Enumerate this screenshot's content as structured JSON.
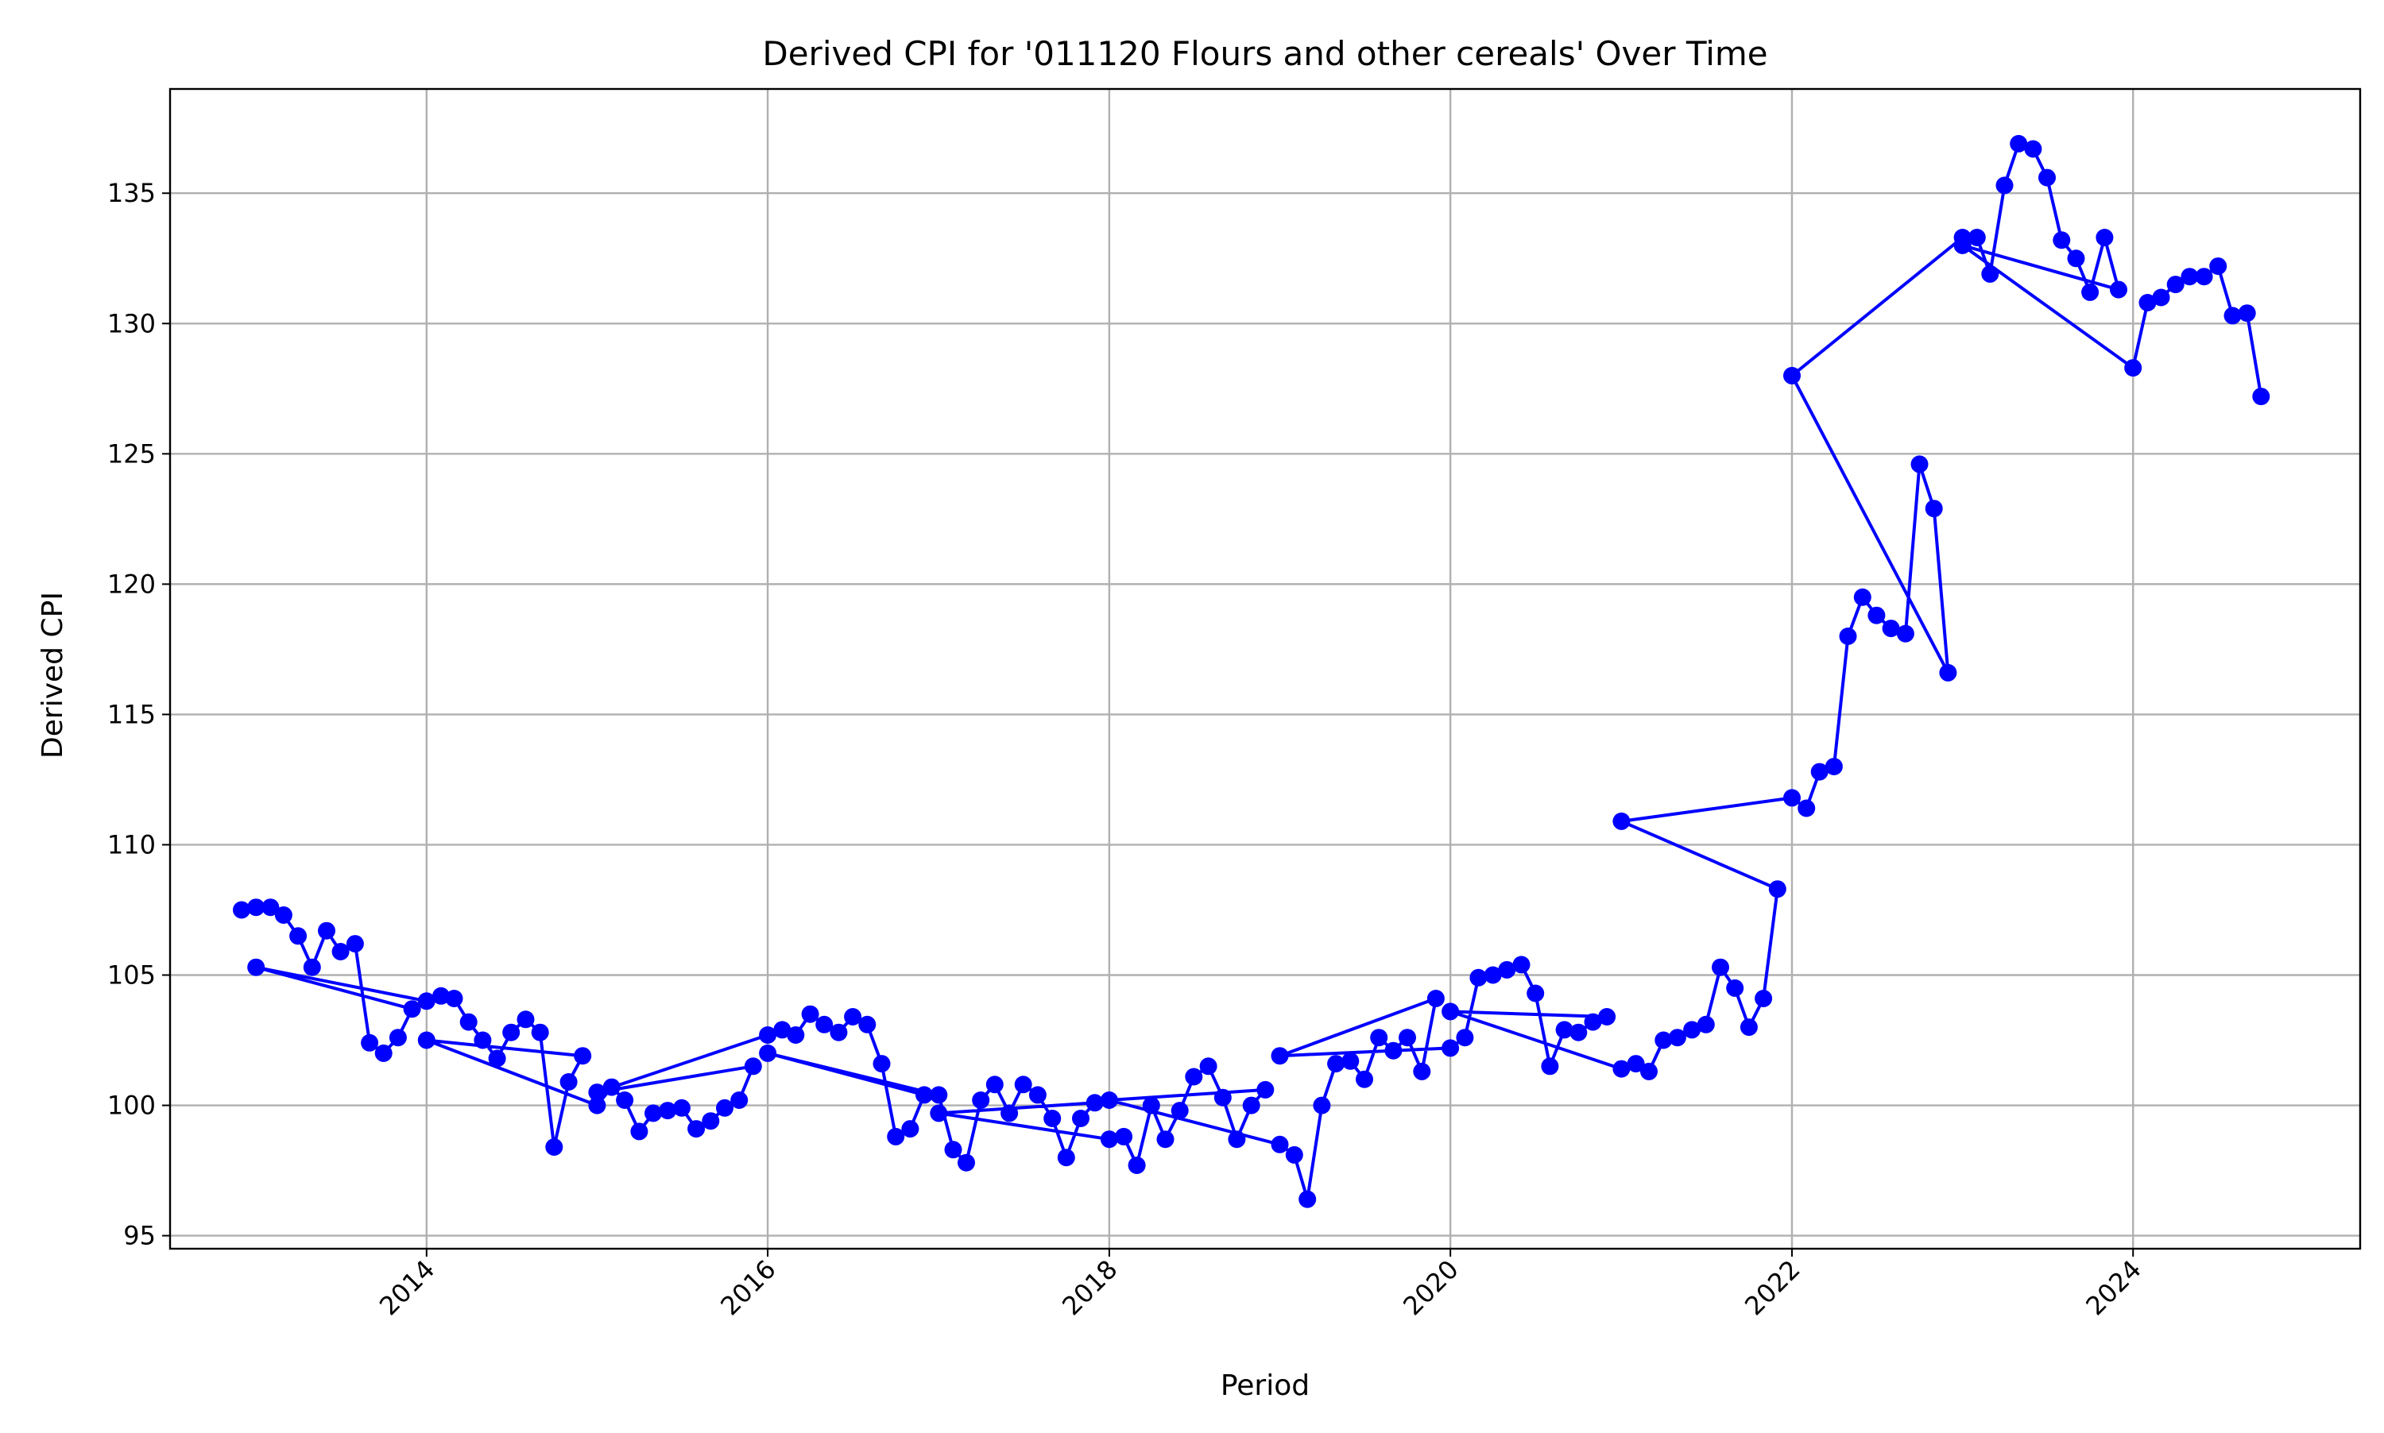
{
  "chart_data": {
    "type": "line",
    "title": "Derived CPI for '011120 Flours and other cereals' Over Time",
    "xlabel": "Period",
    "ylabel": "Derived CPI",
    "xlim": [
      "2012-07-01",
      "2025-05-01"
    ],
    "ylim": [
      94.5,
      139
    ],
    "x_ticks": [
      "2014",
      "2016",
      "2018",
      "2020",
      "2022",
      "2024"
    ],
    "y_ticks": [
      95,
      100,
      105,
      110,
      115,
      120,
      125,
      130,
      135
    ],
    "grid": true,
    "legend": "none",
    "series_color": "#0000ff",
    "series": [
      {
        "x": [
          "2012-12-01",
          "2013-01-01",
          "2013-02-01",
          "2013-03-01",
          "2013-04-01",
          "2013-05-01",
          "2013-06-01",
          "2013-07-01",
          "2013-08-01",
          "2013-09-01",
          "2013-10-01",
          "2013-11-01",
          "2013-12-01",
          "2013-01-01",
          "2014-01-01",
          "2014-02-01",
          "2014-03-01",
          "2014-04-01",
          "2014-05-01",
          "2014-06-01",
          "2014-07-01",
          "2014-08-01",
          "2014-09-01",
          "2014-10-01",
          "2014-11-01",
          "2014-12-01",
          "2014-01-01",
          "2015-01-01",
          "2015-02-01",
          "2015-03-01",
          "2015-04-01",
          "2015-05-01",
          "2015-06-01",
          "2015-07-01",
          "2015-08-01",
          "2015-09-01",
          "2015-10-01",
          "2015-11-01",
          "2015-12-01",
          "2015-01-01",
          "2016-01-01",
          "2016-02-01",
          "2016-03-01",
          "2016-04-01",
          "2016-05-01",
          "2016-06-01",
          "2016-07-01",
          "2016-08-01",
          "2016-09-01",
          "2016-10-01",
          "2016-11-01",
          "2016-12-01",
          "2016-01-01",
          "2017-01-01",
          "2017-02-01",
          "2017-03-01",
          "2017-04-01",
          "2017-05-01",
          "2017-06-01",
          "2017-07-01",
          "2017-08-01",
          "2017-09-01",
          "2017-10-01",
          "2017-11-01",
          "2017-12-01",
          "2017-01-01",
          "2018-01-01",
          "2018-02-01",
          "2018-03-01",
          "2018-04-01",
          "2018-05-01",
          "2018-06-01",
          "2018-07-01",
          "2018-08-01",
          "2018-09-01",
          "2018-10-01",
          "2018-11-01",
          "2018-12-01",
          "2018-01-01",
          "2019-01-01",
          "2019-02-01",
          "2019-03-01",
          "2019-04-01",
          "2019-05-01",
          "2019-06-01",
          "2019-07-01",
          "2019-08-01",
          "2019-09-01",
          "2019-10-01",
          "2019-11-01",
          "2019-12-01",
          "2019-01-01",
          "2020-01-01",
          "2020-02-01",
          "2020-03-01",
          "2020-04-01",
          "2020-05-01",
          "2020-06-01",
          "2020-07-01",
          "2020-08-01",
          "2020-09-01",
          "2020-10-01",
          "2020-11-01",
          "2020-12-01",
          "2020-01-01",
          "2021-01-01",
          "2021-02-01",
          "2021-03-01",
          "2021-04-01",
          "2021-05-01",
          "2021-06-01",
          "2021-07-01",
          "2021-08-01",
          "2021-09-01",
          "2021-10-01",
          "2021-11-01",
          "2021-12-01",
          "2021-01-01",
          "2022-01-01",
          "2022-02-01",
          "2022-03-01",
          "2022-04-01",
          "2022-05-01",
          "2022-06-01",
          "2022-07-01",
          "2022-08-01",
          "2022-09-01",
          "2022-10-01",
          "2022-11-01",
          "2022-12-01",
          "2022-01-01",
          "2023-01-01",
          "2023-02-01",
          "2023-03-01",
          "2023-04-01",
          "2023-05-01",
          "2023-06-01",
          "2023-07-01",
          "2023-08-01",
          "2023-09-01",
          "2023-10-01",
          "2023-11-01",
          "2023-12-01",
          "2023-01-01",
          "2024-01-01",
          "2024-02-01",
          "2024-03-01",
          "2024-04-01",
          "2024-05-01",
          "2024-06-01",
          "2024-07-01",
          "2024-08-01",
          "2024-09-01",
          "2024-10-01"
        ],
        "y": [
          107.5,
          107.6,
          107.6,
          107.3,
          106.5,
          105.3,
          106.7,
          105.9,
          106.2,
          102.4,
          102.0,
          102.6,
          103.7,
          105.3,
          104.0,
          104.2,
          104.1,
          103.2,
          102.5,
          101.8,
          102.8,
          103.3,
          102.8,
          98.4,
          100.9,
          101.9,
          102.5,
          100.0,
          100.7,
          100.2,
          99.0,
          99.7,
          99.8,
          99.9,
          99.1,
          99.4,
          99.9,
          100.2,
          101.5,
          100.5,
          102.7,
          102.9,
          102.7,
          103.5,
          103.1,
          102.8,
          103.4,
          103.1,
          101.6,
          98.8,
          99.1,
          100.4,
          102.0,
          100.4,
          98.3,
          97.8,
          100.2,
          100.8,
          99.7,
          100.8,
          100.4,
          99.5,
          98.0,
          99.5,
          100.1,
          99.7,
          98.7,
          98.8,
          97.7,
          100.0,
          98.7,
          99.8,
          101.1,
          101.5,
          100.3,
          98.7,
          100.0,
          100.6,
          100.2,
          98.5,
          98.1,
          96.4,
          100.0,
          101.6,
          101.7,
          101.0,
          102.6,
          102.1,
          102.6,
          101.3,
          104.1,
          101.9,
          102.2,
          102.6,
          104.9,
          105.0,
          105.2,
          105.4,
          104.3,
          101.5,
          102.9,
          102.8,
          103.2,
          103.4,
          103.6,
          101.4,
          101.6,
          101.3,
          102.5,
          102.6,
          102.9,
          103.1,
          105.3,
          104.5,
          103.0,
          104.1,
          108.3,
          110.9,
          111.8,
          111.4,
          112.8,
          113.0,
          118.0,
          119.5,
          118.8,
          118.3,
          118.1,
          124.6,
          122.9,
          116.6,
          128.0,
          133.3,
          133.3,
          131.9,
          135.3,
          136.9,
          136.7,
          135.6,
          133.2,
          132.5,
          131.2,
          133.3,
          131.3,
          133.0,
          128.3,
          130.8,
          131.0,
          131.5,
          131.8,
          131.8,
          132.2,
          130.3,
          130.4,
          127.2
        ]
      }
    ]
  }
}
